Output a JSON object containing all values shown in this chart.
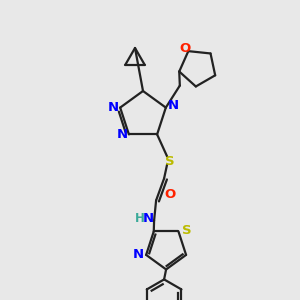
{
  "background_color": "#e8e8e8",
  "N_color": "#0000ff",
  "O_color": "#ff2200",
  "S_color": "#bbbb00",
  "H_color": "#3aaa99",
  "bond_color": "#222222",
  "figsize": [
    3.0,
    3.0
  ],
  "dpi": 100,
  "xlim": [
    0,
    300
  ],
  "ylim": [
    0,
    300
  ]
}
